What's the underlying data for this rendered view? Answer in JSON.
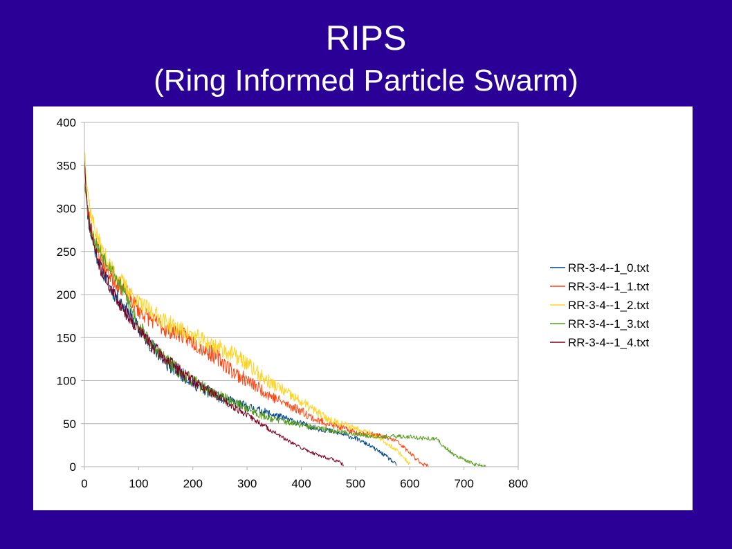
{
  "slide": {
    "title": "RIPS",
    "subtitle": "(Ring Informed Particle Swarm)"
  },
  "colors": {
    "background": "#2a0096",
    "panel": "#ffffff",
    "grid": "#b3b3b3"
  },
  "chart_data": {
    "type": "line",
    "title": "",
    "xlabel": "",
    "ylabel": "",
    "xlim": [
      0,
      800
    ],
    "ylim": [
      0,
      400
    ],
    "x_ticks": [
      0,
      100,
      200,
      300,
      400,
      500,
      600,
      700,
      800
    ],
    "y_ticks": [
      0,
      50,
      100,
      150,
      200,
      250,
      300,
      350,
      400
    ],
    "grid": "horizontal",
    "legend_position": "right",
    "noisy": true,
    "series": [
      {
        "name": "RR-3-4--1_0.txt",
        "color": "#004586",
        "noise": 9,
        "seed": 11,
        "points": [
          [
            0,
            365
          ],
          [
            5,
            300
          ],
          [
            10,
            275
          ],
          [
            20,
            250
          ],
          [
            30,
            232
          ],
          [
            50,
            205
          ],
          [
            75,
            185
          ],
          [
            100,
            160
          ],
          [
            125,
            140
          ],
          [
            150,
            120
          ],
          [
            175,
            110
          ],
          [
            200,
            97
          ],
          [
            225,
            88
          ],
          [
            250,
            80
          ],
          [
            275,
            75
          ],
          [
            300,
            70
          ],
          [
            325,
            65
          ],
          [
            350,
            60
          ],
          [
            375,
            55
          ],
          [
            400,
            50
          ],
          [
            425,
            45
          ],
          [
            450,
            42
          ],
          [
            475,
            38
          ],
          [
            500,
            33
          ],
          [
            525,
            25
          ],
          [
            550,
            15
          ],
          [
            565,
            8
          ],
          [
            575,
            2
          ]
        ]
      },
      {
        "name": "RR-3-4--1_1.txt",
        "color": "#ff420e",
        "noise": 10,
        "seed": 23,
        "points": [
          [
            0,
            335
          ],
          [
            5,
            300
          ],
          [
            10,
            285
          ],
          [
            20,
            260
          ],
          [
            30,
            240
          ],
          [
            50,
            220
          ],
          [
            75,
            205
          ],
          [
            100,
            182
          ],
          [
            125,
            170
          ],
          [
            150,
            160
          ],
          [
            175,
            155
          ],
          [
            200,
            145
          ],
          [
            225,
            135
          ],
          [
            250,
            125
          ],
          [
            275,
            110
          ],
          [
            300,
            100
          ],
          [
            325,
            90
          ],
          [
            350,
            80
          ],
          [
            375,
            72
          ],
          [
            400,
            65
          ],
          [
            425,
            55
          ],
          [
            450,
            50
          ],
          [
            475,
            45
          ],
          [
            500,
            40
          ],
          [
            525,
            38
          ],
          [
            550,
            35
          ],
          [
            575,
            30
          ],
          [
            590,
            22
          ],
          [
            610,
            10
          ],
          [
            625,
            3
          ],
          [
            635,
            0
          ]
        ]
      },
      {
        "name": "RR-3-4--1_2.txt",
        "color": "#ffd320",
        "noise": 10,
        "seed": 37,
        "points": [
          [
            0,
            370
          ],
          [
            5,
            330
          ],
          [
            10,
            300
          ],
          [
            20,
            275
          ],
          [
            30,
            255
          ],
          [
            50,
            230
          ],
          [
            75,
            210
          ],
          [
            100,
            190
          ],
          [
            125,
            180
          ],
          [
            150,
            168
          ],
          [
            175,
            160
          ],
          [
            200,
            152
          ],
          [
            225,
            145
          ],
          [
            250,
            138
          ],
          [
            275,
            130
          ],
          [
            300,
            120
          ],
          [
            325,
            105
          ],
          [
            350,
            95
          ],
          [
            375,
            85
          ],
          [
            400,
            75
          ],
          [
            425,
            65
          ],
          [
            450,
            55
          ],
          [
            475,
            50
          ],
          [
            500,
            45
          ],
          [
            525,
            40
          ],
          [
            550,
            30
          ],
          [
            575,
            20
          ],
          [
            590,
            10
          ],
          [
            600,
            3
          ]
        ]
      },
      {
        "name": "RR-3-4--1_3.txt",
        "color": "#579d1c",
        "noise": 9,
        "seed": 53,
        "points": [
          [
            0,
            335
          ],
          [
            5,
            310
          ],
          [
            10,
            280
          ],
          [
            20,
            260
          ],
          [
            30,
            250
          ],
          [
            50,
            230
          ],
          [
            75,
            200
          ],
          [
            100,
            165
          ],
          [
            125,
            140
          ],
          [
            150,
            125
          ],
          [
            175,
            110
          ],
          [
            200,
            100
          ],
          [
            225,
            90
          ],
          [
            250,
            82
          ],
          [
            275,
            75
          ],
          [
            300,
            68
          ],
          [
            325,
            60
          ],
          [
            350,
            55
          ],
          [
            375,
            52
          ],
          [
            400,
            48
          ],
          [
            425,
            45
          ],
          [
            450,
            43
          ],
          [
            475,
            40
          ],
          [
            500,
            38
          ],
          [
            525,
            36
          ],
          [
            550,
            35
          ],
          [
            575,
            35
          ],
          [
            600,
            35
          ],
          [
            625,
            33
          ],
          [
            650,
            32
          ],
          [
            660,
            25
          ],
          [
            680,
            15
          ],
          [
            700,
            8
          ],
          [
            720,
            3
          ],
          [
            740,
            0
          ]
        ]
      },
      {
        "name": "RR-3-4--1_4.txt",
        "color": "#7e0021",
        "noise": 8,
        "seed": 71,
        "points": [
          [
            0,
            355
          ],
          [
            5,
            300
          ],
          [
            10,
            280
          ],
          [
            20,
            250
          ],
          [
            30,
            230
          ],
          [
            50,
            205
          ],
          [
            75,
            180
          ],
          [
            100,
            160
          ],
          [
            125,
            140
          ],
          [
            150,
            125
          ],
          [
            175,
            112
          ],
          [
            200,
            100
          ],
          [
            225,
            90
          ],
          [
            250,
            80
          ],
          [
            275,
            70
          ],
          [
            300,
            60
          ],
          [
            325,
            50
          ],
          [
            350,
            40
          ],
          [
            375,
            30
          ],
          [
            400,
            22
          ],
          [
            425,
            15
          ],
          [
            450,
            10
          ],
          [
            465,
            7
          ],
          [
            478,
            2
          ]
        ]
      }
    ]
  }
}
